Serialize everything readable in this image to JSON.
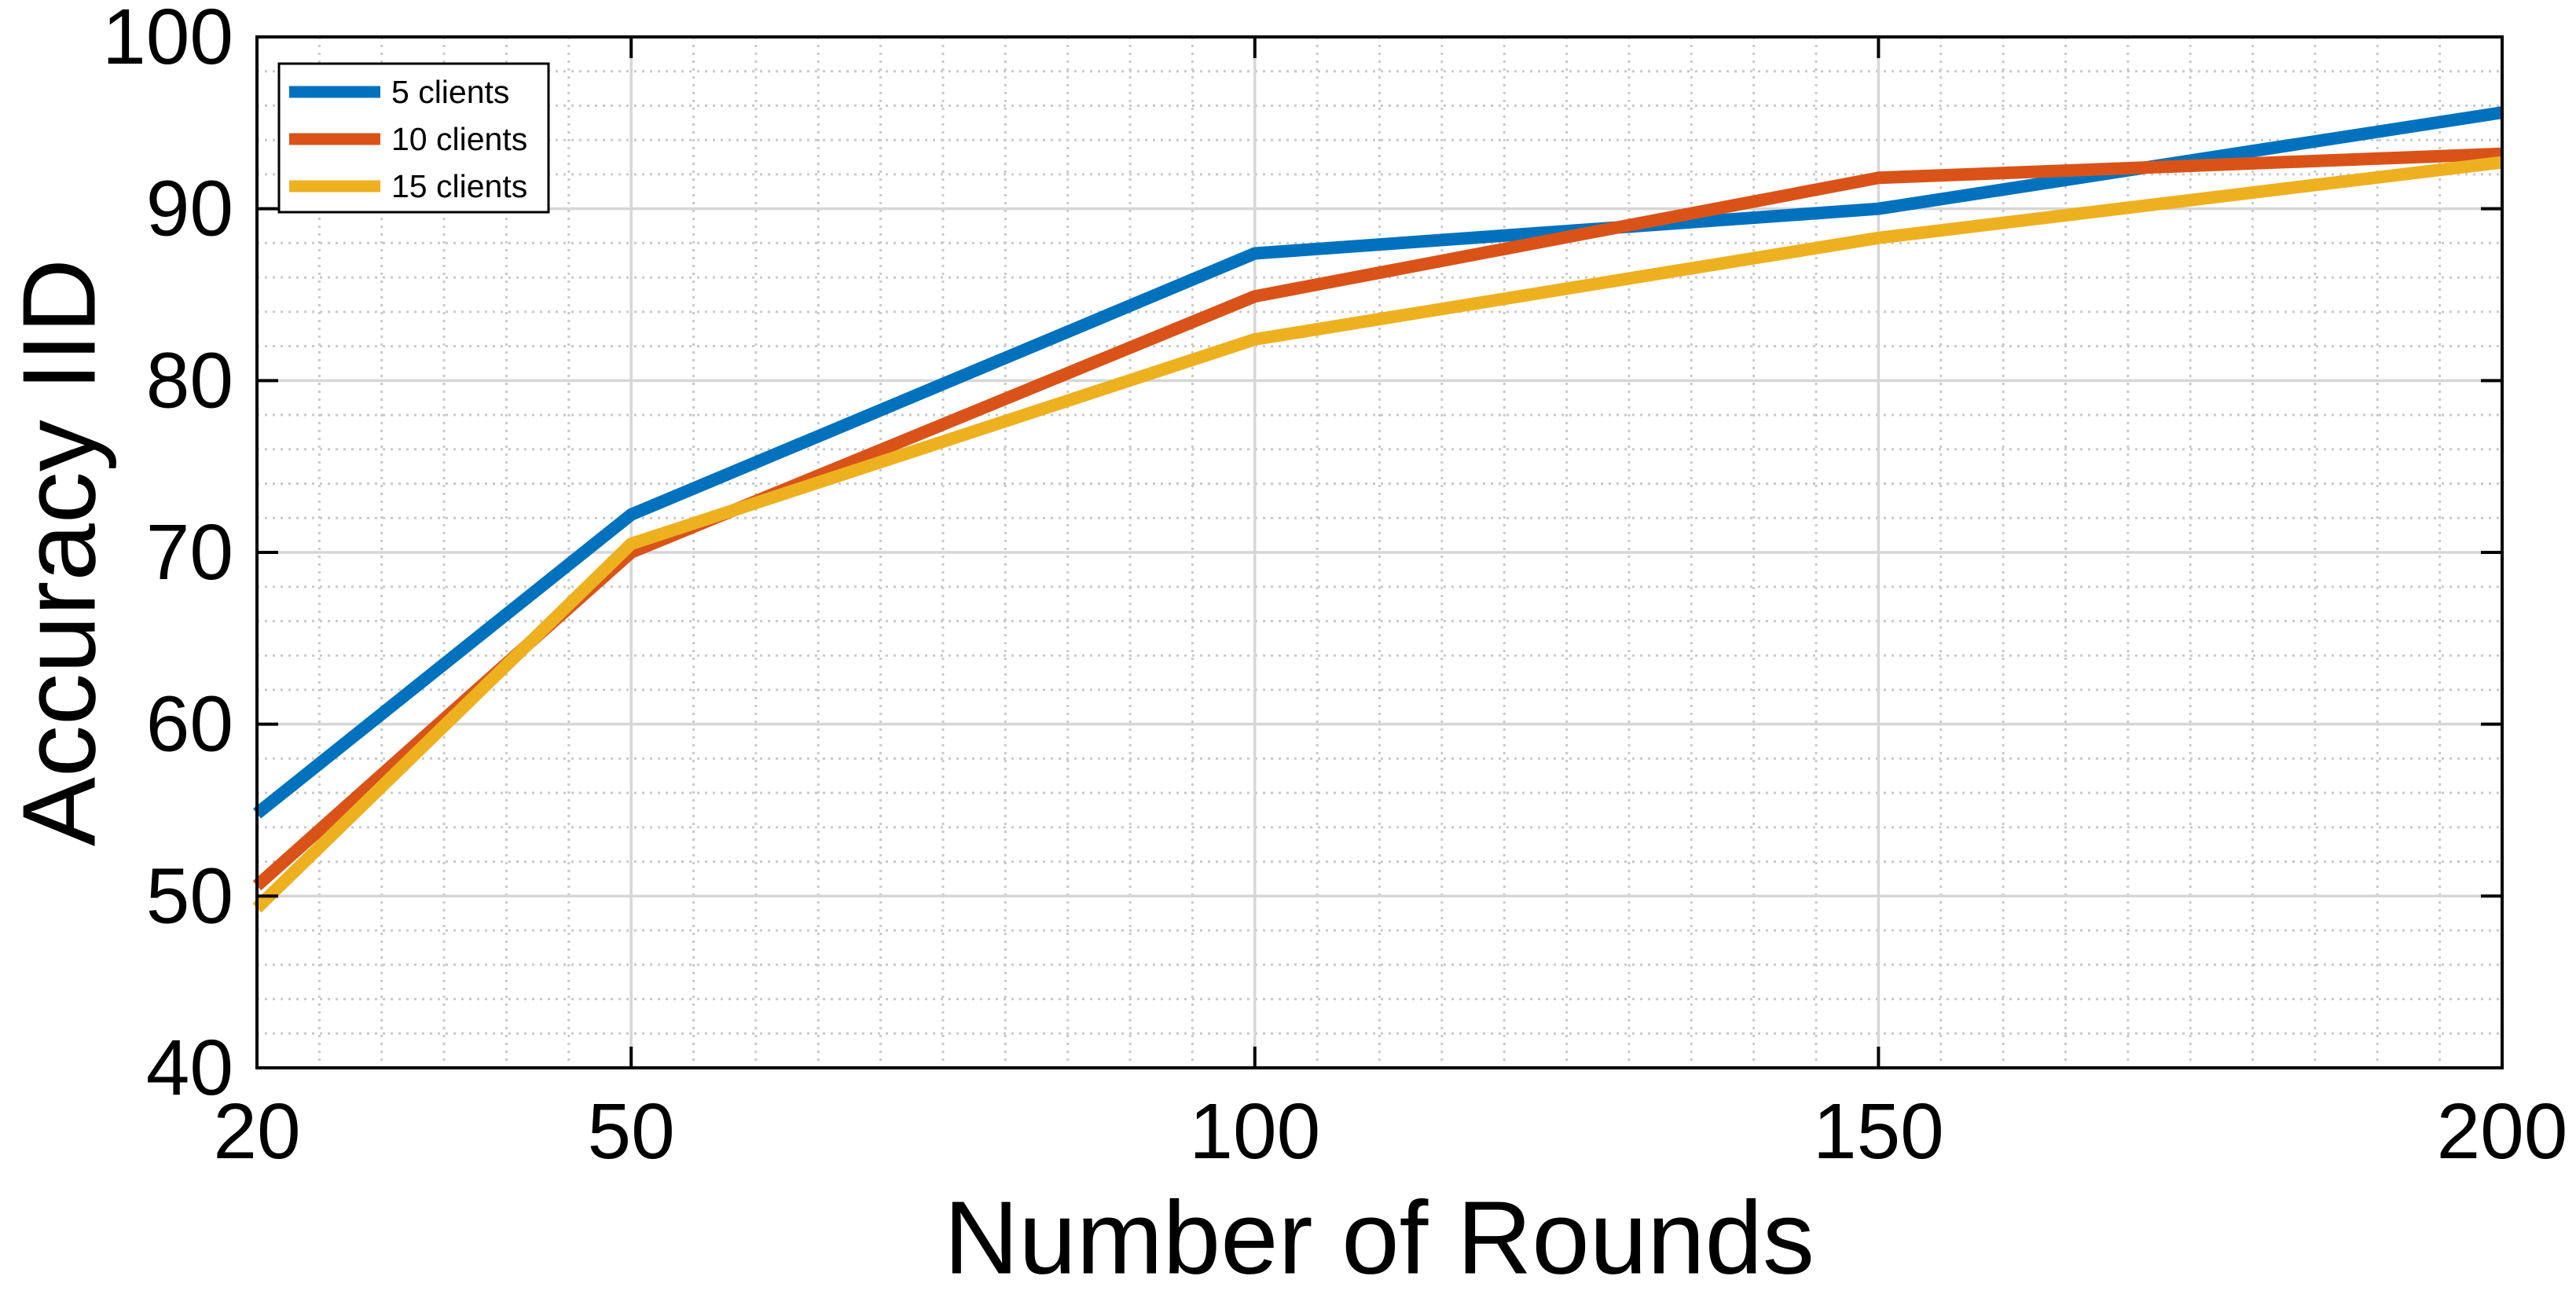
{
  "chart_data": {
    "type": "line",
    "title": "",
    "xlabel": "Number of Rounds",
    "ylabel": "Accuracy IID",
    "x": [
      20,
      50,
      100,
      150,
      200
    ],
    "series": [
      {
        "name": "5 clients",
        "color": "#0072BD",
        "values": [
          54.8,
          72.2,
          87.4,
          90.0,
          95.6
        ]
      },
      {
        "name": "10 clients",
        "color": "#D95319",
        "values": [
          50.6,
          70.0,
          84.9,
          91.8,
          93.2
        ]
      },
      {
        "name": "15 clients",
        "color": "#EDB120",
        "values": [
          49.3,
          70.5,
          82.4,
          88.3,
          92.7
        ]
      }
    ],
    "xlim": [
      20,
      200
    ],
    "ylim": [
      40,
      100
    ],
    "xticks": [
      20,
      50,
      100,
      150,
      200
    ],
    "yticks": [
      40,
      50,
      60,
      70,
      80,
      90,
      100
    ],
    "x_minor_step": 5,
    "y_minor_step": 2,
    "grid": "major solid + minor dotted",
    "legend_position": "top-left",
    "line_width": 16,
    "axis_color": "#000000",
    "major_grid_color": "#d6d6d6",
    "minor_grid_color": "#c9c9c9",
    "background": "#ffffff"
  }
}
